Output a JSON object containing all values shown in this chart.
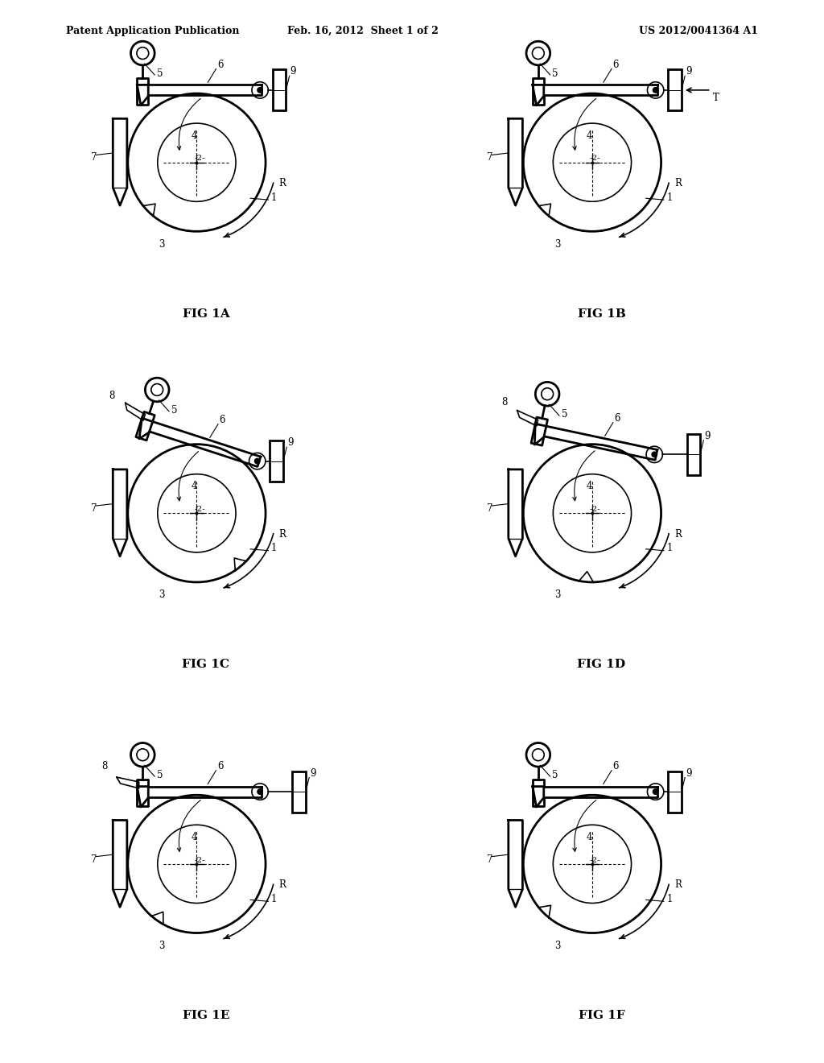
{
  "header_left": "Patent Application Publication",
  "header_center": "Feb. 16, 2012  Sheet 1 of 2",
  "header_right": "US 2012/0041364 A1",
  "figures": [
    "FIG 1A",
    "FIG 1B",
    "FIG 1C",
    "FIG 1D",
    "FIG 1E",
    "FIG 1F"
  ],
  "bg_color": "#ffffff",
  "line_color": "#000000",
  "lw": 1.2,
  "lw_thick": 2.0
}
